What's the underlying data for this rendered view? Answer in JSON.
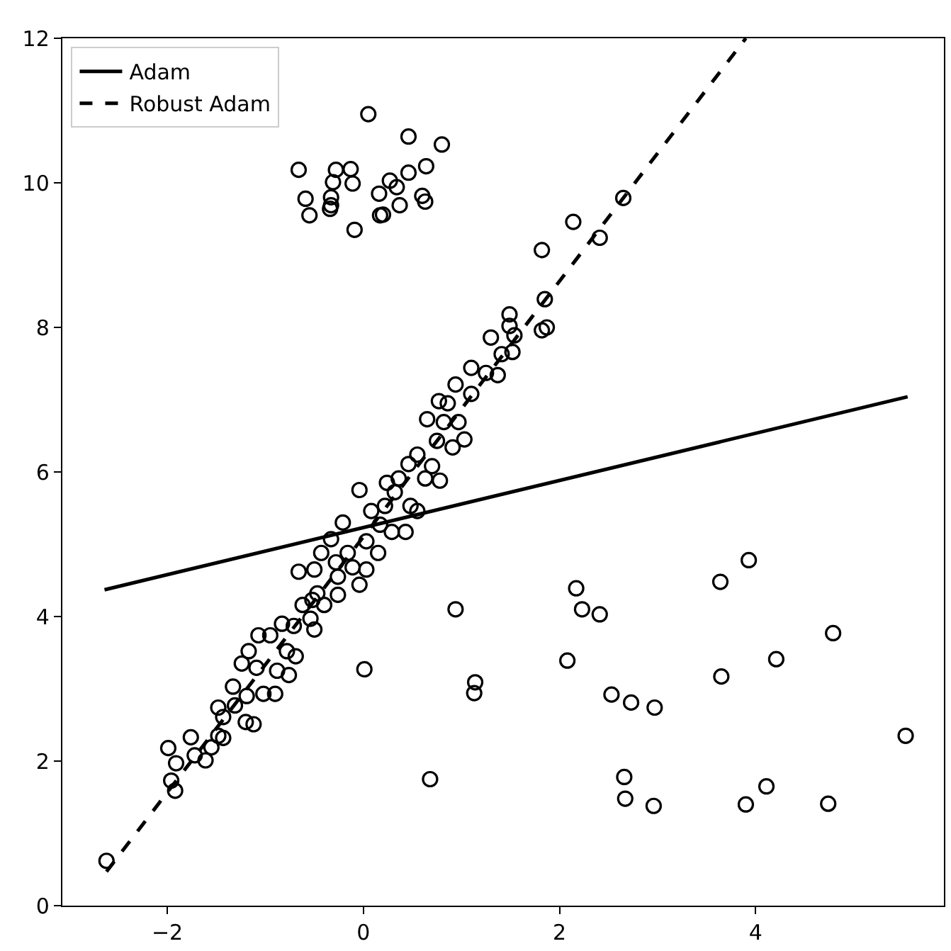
{
  "chart_data": {
    "type": "scatter",
    "xlim": [
      -3.07,
      5.92
    ],
    "ylim": [
      0,
      12
    ],
    "xticks": [
      -2,
      0,
      2,
      4
    ],
    "yticks": [
      0,
      2,
      4,
      6,
      8,
      10,
      12
    ],
    "legend": "top left",
    "series": [
      {
        "marker": "circle",
        "color": "#000000",
        "x": [
          -2.62,
          -1.99,
          -1.91,
          -1.96,
          -1.92,
          -1.76,
          -1.72,
          -1.61,
          -1.55,
          -1.48,
          -1.43,
          -1.48,
          -1.43,
          -1.33,
          -1.31,
          -1.24,
          -1.2,
          -1.12,
          -1.17,
          -1.19,
          -1.07,
          -1.09,
          -1.02,
          -0.95,
          -0.9,
          -0.88,
          -0.83,
          -0.76,
          -0.69,
          -0.78,
          -0.71,
          -0.66,
          -0.62,
          -0.54,
          -0.5,
          -0.52,
          -0.47,
          -0.4,
          -0.5,
          -0.43,
          -0.33,
          -0.26,
          -0.26,
          -0.28,
          -0.21,
          -0.16,
          -0.11,
          -0.04,
          -0.04,
          0.03,
          0.03,
          0.08,
          0.15,
          0.17,
          0.22,
          0.24,
          0.29,
          0.32,
          0.36,
          0.43,
          0.46,
          0.48,
          0.55,
          0.55,
          0.63,
          0.65,
          0.7,
          0.75,
          0.77,
          0.78,
          0.82,
          0.86,
          0.91,
          0.94,
          0.97,
          1.03,
          1.1,
          1.1,
          1.25,
          1.37,
          1.3,
          1.41,
          1.49,
          1.52,
          1.54,
          1.49,
          1.85,
          1.82,
          1.87,
          1.82,
          2.14,
          2.41,
          2.65,
          0.05,
          0.46,
          0.8,
          -0.66,
          -0.28,
          -0.13,
          -0.31,
          -0.11,
          0.64,
          0.46,
          0.27,
          0.34,
          0.16,
          -0.59,
          -0.33,
          -0.33,
          -0.34,
          -0.55,
          0.6,
          0.63,
          0.37,
          0.2,
          0.17,
          -0.09,
          0.94,
          0.01,
          1.14,
          1.13,
          0.68,
          2.17,
          2.23,
          2.41,
          2.08,
          2.53,
          2.73,
          2.97,
          2.66,
          2.67,
          2.96,
          3.93,
          3.64,
          4.79,
          4.21,
          3.65,
          5.53,
          4.11,
          3.9,
          4.74
        ],
        "values": [
          0.62,
          2.18,
          1.97,
          1.73,
          1.59,
          2.33,
          2.08,
          2.01,
          2.19,
          2.35,
          2.32,
          2.74,
          2.61,
          3.03,
          2.77,
          3.35,
          2.54,
          2.51,
          3.52,
          2.9,
          3.74,
          3.29,
          2.93,
          3.74,
          2.93,
          3.25,
          3.9,
          3.19,
          3.45,
          3.52,
          3.87,
          4.62,
          4.16,
          3.97,
          3.82,
          4.23,
          4.32,
          4.16,
          4.65,
          4.88,
          5.07,
          4.3,
          4.55,
          4.75,
          5.3,
          4.88,
          4.68,
          5.75,
          4.44,
          4.65,
          5.04,
          5.46,
          4.88,
          5.27,
          5.53,
          5.85,
          5.17,
          5.72,
          5.91,
          5.17,
          6.11,
          5.53,
          5.46,
          6.24,
          5.91,
          6.73,
          6.08,
          6.43,
          6.98,
          5.88,
          6.69,
          6.95,
          6.34,
          7.21,
          6.69,
          6.45,
          7.08,
          7.44,
          7.37,
          7.34,
          7.86,
          7.63,
          8.18,
          7.66,
          7.89,
          8.02,
          8.39,
          7.96,
          8.0,
          9.07,
          9.46,
          9.24,
          9.79,
          10.95,
          10.64,
          10.53,
          10.18,
          10.18,
          10.19,
          10.01,
          9.99,
          10.23,
          10.14,
          10.03,
          9.94,
          9.85,
          9.78,
          9.8,
          9.69,
          9.64,
          9.55,
          9.82,
          9.74,
          9.69,
          9.56,
          9.55,
          9.35,
          4.1,
          3.27,
          3.09,
          2.94,
          1.75,
          4.39,
          4.1,
          4.03,
          3.39,
          2.92,
          2.81,
          2.74,
          1.78,
          1.48,
          1.38,
          4.78,
          4.48,
          3.77,
          3.41,
          3.17,
          2.35,
          1.65,
          1.4,
          1.41
        ]
      },
      {
        "type": "line",
        "name": "Adam",
        "color": "#000000",
        "line_style": "solid",
        "marker": "none",
        "x": [
          -2.64,
          5.55
        ],
        "values": [
          4.37,
          7.04
        ]
      },
      {
        "type": "line",
        "name": "Robust Adam",
        "color": "#000000",
        "line_style": "dashed",
        "marker": "none",
        "x": [
          -2.62,
          3.9
        ],
        "values": [
          0.47,
          12.0
        ]
      }
    ]
  }
}
